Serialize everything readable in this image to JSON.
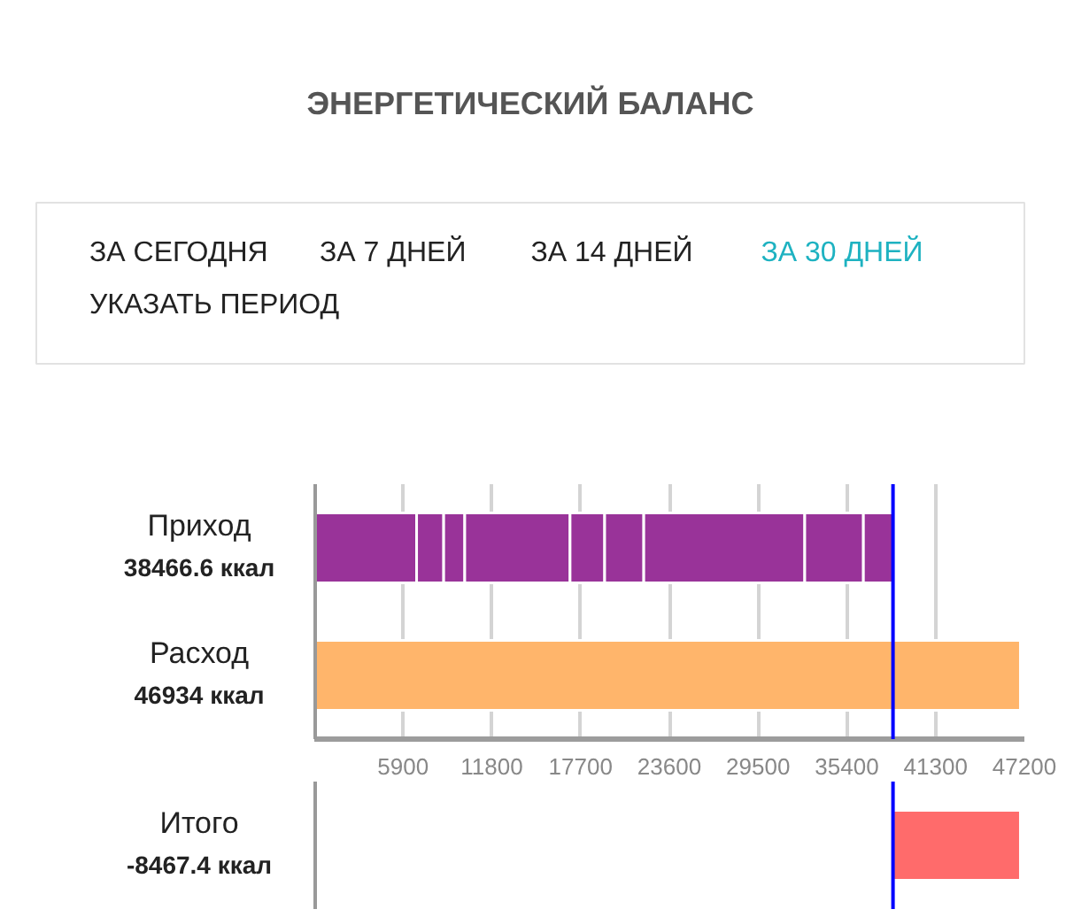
{
  "chart_data": [
    {
      "type": "other",
      "title": "ЭНЕРГЕТИЧЕСКИЙ БАЛАНС",
      "categories": [
        "ЗА СЕГОДНЯ",
        "ЗА 7 ДНЕЙ",
        "ЗА 14 ДНЕЙ",
        "ЗА 30 ДНЕЙ",
        "УКАЗАТЬ ПЕРИОД"
      ],
      "colors": [
        "#222222",
        "#222222",
        "#222222",
        "#1eb2c1",
        "#222222"
      ]
    },
    {
      "type": "bar",
      "orientation": "horizontal",
      "stacked": true,
      "categories": [
        "Приход",
        "Расход"
      ],
      "series": [
        {
          "color": "#993399",
          "values": [
            6800,
            null
          ]
        },
        {
          "color": "#993399",
          "values": [
            1800,
            null
          ]
        },
        {
          "color": "#993399",
          "values": [
            1400,
            null
          ]
        },
        {
          "color": "#993399",
          "values": [
            7000,
            null
          ]
        },
        {
          "color": "#993399",
          "values": [
            2300,
            null
          ]
        },
        {
          "color": "#993399",
          "values": [
            2600,
            null
          ]
        },
        {
          "color": "#993399",
          "values": [
            10700,
            null
          ]
        },
        {
          "color": "#993399",
          "values": [
            3900,
            null
          ]
        },
        {
          "color": "#993399",
          "values": [
            1966.6,
            null
          ]
        },
        {
          "color": "#ffb56b",
          "values": [
            null,
            46934
          ]
        }
      ],
      "totals": [
        "38466.6 ккал",
        "46934 ккал"
      ],
      "xlim": [
        0,
        47200
      ],
      "xticks": [
        5900,
        11800,
        17700,
        23600,
        29500,
        35400,
        41300,
        47200
      ],
      "grid": "x",
      "ref_lines": [
        {
          "axis": "x",
          "value": 38466.6,
          "color": "#0000ff"
        }
      ]
    },
    {
      "type": "bar",
      "orientation": "horizontal",
      "categories": [
        "Итого"
      ],
      "base": [
        46934
      ],
      "values": [
        -8467.4
      ],
      "color": "#ff6b6b",
      "annotations": [
        "-8467.4 ккал"
      ],
      "xlim": [
        0,
        47200
      ],
      "tick_labels": "y",
      "ref_lines": [
        {
          "axis": "x",
          "value": 38466.6,
          "color": "#0000ff"
        }
      ]
    }
  ]
}
